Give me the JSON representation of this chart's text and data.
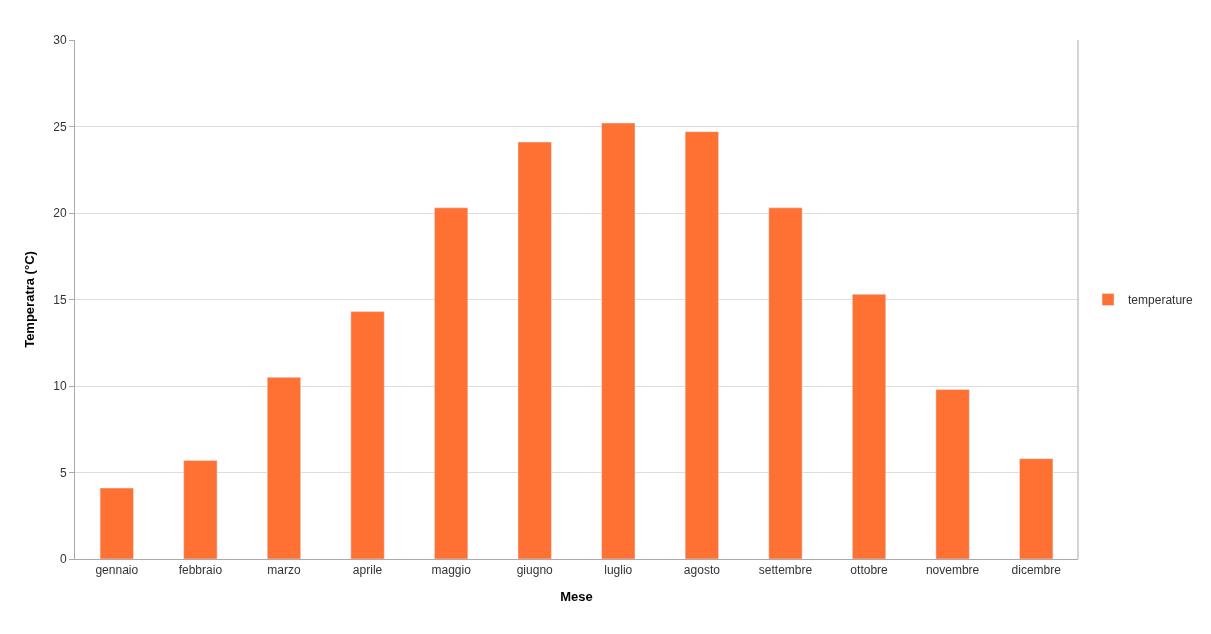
{
  "chart_data": {
    "type": "bar",
    "xlabel": "Mese",
    "ylabel": "Temperatra (°C)",
    "categories": [
      "gennaio",
      "febbraio",
      "marzo",
      "aprile",
      "maggio",
      "giugno",
      "luglio",
      "agosto",
      "settembre",
      "ottobre",
      "novembre",
      "dicembre"
    ],
    "series": [
      {
        "name": "temperature",
        "color": "#ff7033",
        "values": [
          4.1,
          5.7,
          10.5,
          14.3,
          20.3,
          24.1,
          25.2,
          24.7,
          20.3,
          15.3,
          9.8,
          5.8
        ]
      }
    ],
    "ylim": [
      0,
      30
    ],
    "yticks": [
      0,
      5,
      10,
      15,
      20,
      25,
      30
    ],
    "grid": "y",
    "legend": "right"
  }
}
